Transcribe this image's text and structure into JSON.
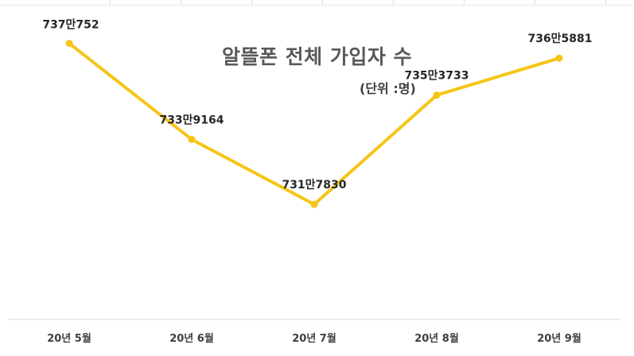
{
  "chart_data": {
    "type": "line",
    "title": "알뜰폰 전체 가입자 수",
    "subtitle": "(단위 :명)",
    "categories": [
      "20년 5월",
      "20년 6월",
      "20년 7월",
      "20년 8월",
      "20년 9월"
    ],
    "series": [
      {
        "values": [
          7370752,
          7339164,
          7317830,
          7353733,
          7365881
        ],
        "labels": [
          "737만752",
          "733만9164",
          "731만7830",
          "735만3733",
          "736만5881"
        ],
        "color": "#F5C518"
      }
    ],
    "ylim": [
      7280000,
      7385000
    ],
    "grid": false,
    "legend": "none"
  }
}
